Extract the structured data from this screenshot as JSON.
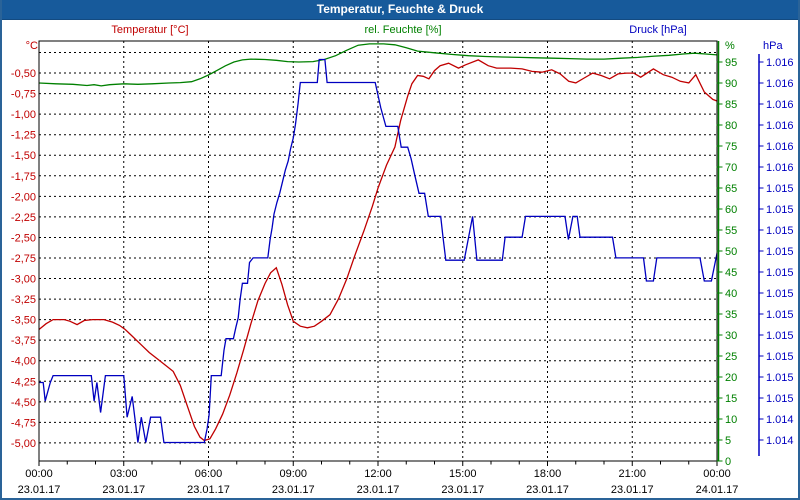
{
  "window": {
    "title": "Temperatur, Feuchte & Druck"
  },
  "series_labels": {
    "temperature": "Temperatur [°C]",
    "humidity": "rel. Feuchte [%]",
    "pressure": "Druck [hPa]"
  },
  "axis_units": {
    "temperature": "°C",
    "humidity": "%",
    "pressure": "hPa"
  },
  "colors": {
    "temperature": "#c00000",
    "humidity": "#008000",
    "pressure": "#0000c0",
    "grid": "#000000",
    "titlebar": "#175a9b",
    "window_border": "#2a6398"
  },
  "chart_data": {
    "type": "line",
    "title": "Temperatur, Feuchte & Druck",
    "x_axis": {
      "unit": "time",
      "range_hours": [
        0,
        24
      ],
      "major_tick_every_hours": 3,
      "minor_tick_every_hours": 1,
      "ticks": [
        {
          "h": 0,
          "time": "00:00",
          "date": "23.01.17"
        },
        {
          "h": 3,
          "time": "03:00",
          "date": "23.01.17"
        },
        {
          "h": 6,
          "time": "06:00",
          "date": "23.01.17"
        },
        {
          "h": 9,
          "time": "09:00",
          "date": "23.01.17"
        },
        {
          "h": 12,
          "time": "12:00",
          "date": "23.01.17"
        },
        {
          "h": 15,
          "time": "15:00",
          "date": "23.01.17"
        },
        {
          "h": 18,
          "time": "18:00",
          "date": "23.01.17"
        },
        {
          "h": 21,
          "time": "21:00",
          "date": "23.01.17"
        },
        {
          "h": 24,
          "time": "00:00",
          "date": "24.01.17"
        }
      ]
    },
    "y_axes": {
      "temperature": {
        "unit": "°C",
        "side": "left",
        "range": [
          -5.22,
          -0.11
        ],
        "gridline_values": [
          -0.25,
          -0.5,
          -0.75,
          -1.0,
          -1.25,
          -1.5,
          -1.75,
          -2.0,
          -2.25,
          -2.5,
          -2.75,
          -3.0,
          -3.25,
          -3.5,
          -3.75,
          -4.0,
          -4.25,
          -4.5,
          -4.75,
          -5.0
        ],
        "tick_values": [
          -0.5,
          -0.75,
          -1.0,
          -1.25,
          -1.5,
          -1.75,
          -2.0,
          -2.25,
          -2.5,
          -2.75,
          -3.0,
          -3.25,
          -3.5,
          -3.75,
          -4.0,
          -4.25,
          -4.5,
          -4.75,
          -5.0
        ],
        "tick_labels": [
          "-0,50",
          "-0,75",
          "-1,00",
          "-1,25",
          "-1,50",
          "-1,75",
          "-2,00",
          "-2,25",
          "-2,50",
          "-2,75",
          "-3,00",
          "-3,25",
          "-3,50",
          "-3,75",
          "-4,00",
          "-4,25",
          "-4,50",
          "-4,75",
          "-5,00"
        ]
      },
      "humidity": {
        "unit": "%",
        "side": "right-inner",
        "range": [
          0,
          100
        ],
        "tick_values": [
          95,
          90,
          85,
          80,
          75,
          70,
          65,
          60,
          55,
          50,
          45,
          40,
          35,
          30,
          25,
          20,
          15,
          10,
          5,
          0
        ],
        "tick_labels": [
          "95",
          "90",
          "85",
          "80",
          "75",
          "70",
          "65",
          "60",
          "55",
          "50",
          "45",
          "40",
          "35",
          "30",
          "25",
          "20",
          "15",
          "10",
          "5",
          "0"
        ]
      },
      "pressure": {
        "unit": "hPa",
        "side": "right-outer",
        "range": [
          1014.27,
          1016.09
        ],
        "tick_positions_on_humidity_scale": [
          95,
          90,
          85,
          80,
          75,
          70,
          65,
          60,
          55,
          50,
          45,
          40,
          35,
          30,
          25,
          20,
          15,
          10,
          5
        ],
        "tick_labels": [
          "1.016",
          "1.016",
          "1.016",
          "1.016",
          "1.016",
          "1.016",
          "1.015",
          "1.015",
          "1.015",
          "1.015",
          "1.015",
          "1.015",
          "1.015",
          "1.015",
          "1.015",
          "1.015",
          "1.015",
          "1.014",
          "1.014"
        ]
      }
    },
    "series": [
      {
        "name": "Temperatur",
        "unit": "°C",
        "axis": "temperature",
        "color": "#c00000",
        "points": [
          [
            0,
            -3.62
          ],
          [
            0.25,
            -3.55
          ],
          [
            0.5,
            -3.5
          ],
          [
            0.9,
            -3.5
          ],
          [
            1.1,
            -3.52
          ],
          [
            1.35,
            -3.56
          ],
          [
            1.6,
            -3.51
          ],
          [
            1.9,
            -3.5
          ],
          [
            2.3,
            -3.5
          ],
          [
            2.6,
            -3.53
          ],
          [
            2.85,
            -3.57
          ],
          [
            3.05,
            -3.62
          ],
          [
            3.3,
            -3.7
          ],
          [
            3.6,
            -3.8
          ],
          [
            3.9,
            -3.9
          ],
          [
            4.2,
            -3.98
          ],
          [
            4.5,
            -4.06
          ],
          [
            4.75,
            -4.13
          ],
          [
            5.0,
            -4.3
          ],
          [
            5.25,
            -4.55
          ],
          [
            5.5,
            -4.8
          ],
          [
            5.7,
            -4.93
          ],
          [
            5.85,
            -4.97
          ],
          [
            6.05,
            -4.95
          ],
          [
            6.25,
            -4.83
          ],
          [
            6.5,
            -4.65
          ],
          [
            6.75,
            -4.42
          ],
          [
            7.0,
            -4.15
          ],
          [
            7.25,
            -3.86
          ],
          [
            7.5,
            -3.55
          ],
          [
            7.75,
            -3.27
          ],
          [
            8.0,
            -3.06
          ],
          [
            8.2,
            -2.93
          ],
          [
            8.4,
            -2.87
          ],
          [
            8.6,
            -3.07
          ],
          [
            8.8,
            -3.32
          ],
          [
            9.0,
            -3.52
          ],
          [
            9.25,
            -3.58
          ],
          [
            9.5,
            -3.6
          ],
          [
            9.75,
            -3.58
          ],
          [
            10.0,
            -3.52
          ],
          [
            10.3,
            -3.44
          ],
          [
            10.6,
            -3.25
          ],
          [
            10.9,
            -3.0
          ],
          [
            11.2,
            -2.7
          ],
          [
            11.5,
            -2.42
          ],
          [
            11.8,
            -2.12
          ],
          [
            12.0,
            -1.9
          ],
          [
            12.3,
            -1.62
          ],
          [
            12.6,
            -1.4
          ],
          [
            12.8,
            -1.08
          ],
          [
            13.05,
            -0.78
          ],
          [
            13.2,
            -0.63
          ],
          [
            13.4,
            -0.53
          ],
          [
            13.6,
            -0.54
          ],
          [
            13.8,
            -0.57
          ],
          [
            14.0,
            -0.47
          ],
          [
            14.2,
            -0.41
          ],
          [
            14.5,
            -0.38
          ],
          [
            14.85,
            -0.44
          ],
          [
            15.1,
            -0.4
          ],
          [
            15.55,
            -0.34
          ],
          [
            15.9,
            -0.41
          ],
          [
            16.2,
            -0.44
          ],
          [
            16.7,
            -0.44
          ],
          [
            17.1,
            -0.45
          ],
          [
            17.45,
            -0.48
          ],
          [
            17.8,
            -0.49
          ],
          [
            18.15,
            -0.46
          ],
          [
            18.45,
            -0.51
          ],
          [
            18.75,
            -0.6
          ],
          [
            19.0,
            -0.62
          ],
          [
            19.3,
            -0.56
          ],
          [
            19.6,
            -0.5
          ],
          [
            19.9,
            -0.53
          ],
          [
            20.2,
            -0.57
          ],
          [
            20.5,
            -0.51
          ],
          [
            20.8,
            -0.5
          ],
          [
            21.05,
            -0.5
          ],
          [
            21.3,
            -0.55
          ],
          [
            21.75,
            -0.45
          ],
          [
            22.1,
            -0.52
          ],
          [
            22.4,
            -0.55
          ],
          [
            22.7,
            -0.6
          ],
          [
            23.0,
            -0.62
          ],
          [
            23.25,
            -0.52
          ],
          [
            23.55,
            -0.73
          ],
          [
            23.85,
            -0.82
          ],
          [
            24,
            -0.84
          ]
        ]
      },
      {
        "name": "rel. Feuchte",
        "unit": "%",
        "axis": "humidity",
        "color": "#008000",
        "points": [
          [
            0,
            90
          ],
          [
            0.6,
            89.8
          ],
          [
            1.2,
            89.7
          ],
          [
            1.7,
            89.4
          ],
          [
            1.95,
            89.6
          ],
          [
            2.2,
            89.3
          ],
          [
            2.5,
            89.6
          ],
          [
            3.0,
            89.8
          ],
          [
            3.5,
            89.7
          ],
          [
            4.0,
            89.8
          ],
          [
            4.6,
            90
          ],
          [
            5.0,
            90.1
          ],
          [
            5.4,
            90.3
          ],
          [
            5.7,
            91.0
          ],
          [
            6.0,
            91.9
          ],
          [
            6.3,
            93.0
          ],
          [
            6.6,
            94.1
          ],
          [
            6.9,
            95.0
          ],
          [
            7.2,
            95.5
          ],
          [
            7.5,
            95.7
          ],
          [
            8.0,
            95.6
          ],
          [
            8.4,
            95.4
          ],
          [
            8.8,
            95.1
          ],
          [
            9.2,
            95.0
          ],
          [
            9.7,
            95.1
          ],
          [
            10.1,
            95.6
          ],
          [
            10.5,
            96.5
          ],
          [
            10.9,
            97.8
          ],
          [
            11.3,
            99.0
          ],
          [
            11.7,
            99.3
          ],
          [
            12.2,
            99.3
          ],
          [
            12.6,
            99.1
          ],
          [
            13.0,
            98.4
          ],
          [
            13.4,
            97.6
          ],
          [
            14.0,
            97.2
          ],
          [
            14.6,
            96.8
          ],
          [
            15.2,
            96.5
          ],
          [
            15.8,
            96.3
          ],
          [
            16.4,
            96.2
          ],
          [
            17.0,
            96.1
          ],
          [
            17.6,
            96.0
          ],
          [
            18.2,
            95.9
          ],
          [
            18.8,
            95.8
          ],
          [
            19.4,
            95.7
          ],
          [
            20.0,
            95.7
          ],
          [
            20.6,
            95.9
          ],
          [
            21.2,
            96.1
          ],
          [
            21.8,
            96.4
          ],
          [
            22.3,
            96.6
          ],
          [
            22.8,
            96.9
          ],
          [
            23.2,
            97.1
          ],
          [
            23.6,
            96.9
          ],
          [
            24,
            96.7
          ]
        ]
      },
      {
        "name": "Druck",
        "unit": "hPa",
        "axis": "pressure",
        "color": "#0000c0",
        "points": [
          [
            0,
            1014.61
          ],
          [
            0.15,
            1014.61
          ],
          [
            0.22,
            1014.53
          ],
          [
            0.4,
            1014.61
          ],
          [
            0.5,
            1014.64
          ],
          [
            1.85,
            1014.64
          ],
          [
            1.95,
            1014.53
          ],
          [
            2.05,
            1014.61
          ],
          [
            2.18,
            1014.48
          ],
          [
            2.35,
            1014.64
          ],
          [
            3.0,
            1014.64
          ],
          [
            3.12,
            1014.46
          ],
          [
            3.3,
            1014.55
          ],
          [
            3.5,
            1014.35
          ],
          [
            3.62,
            1014.46
          ],
          [
            3.78,
            1014.35
          ],
          [
            3.95,
            1014.46
          ],
          [
            4.3,
            1014.46
          ],
          [
            4.42,
            1014.35
          ],
          [
            5.85,
            1014.35
          ],
          [
            5.95,
            1014.41
          ],
          [
            6.02,
            1014.47
          ],
          [
            6.1,
            1014.64
          ],
          [
            6.45,
            1014.64
          ],
          [
            6.55,
            1014.75
          ],
          [
            6.62,
            1014.8
          ],
          [
            6.88,
            1014.8
          ],
          [
            6.97,
            1014.85
          ],
          [
            7.05,
            1014.89
          ],
          [
            7.12,
            1014.97
          ],
          [
            7.2,
            1015.04
          ],
          [
            7.38,
            1015.04
          ],
          [
            7.45,
            1015.13
          ],
          [
            7.58,
            1015.15
          ],
          [
            8.1,
            1015.15
          ],
          [
            8.18,
            1015.23
          ],
          [
            8.25,
            1015.28
          ],
          [
            8.32,
            1015.34
          ],
          [
            8.42,
            1015.39
          ],
          [
            8.52,
            1015.43
          ],
          [
            8.62,
            1015.48
          ],
          [
            8.72,
            1015.53
          ],
          [
            8.82,
            1015.57
          ],
          [
            8.9,
            1015.62
          ],
          [
            9.0,
            1015.67
          ],
          [
            9.08,
            1015.73
          ],
          [
            9.17,
            1015.82
          ],
          [
            9.25,
            1015.91
          ],
          [
            9.85,
            1015.91
          ],
          [
            9.92,
            1016.01
          ],
          [
            10.12,
            1016.01
          ],
          [
            10.2,
            1015.91
          ],
          [
            11.9,
            1015.91
          ],
          [
            12.1,
            1015.8
          ],
          [
            12.28,
            1015.72
          ],
          [
            12.7,
            1015.72
          ],
          [
            12.82,
            1015.63
          ],
          [
            13.05,
            1015.63
          ],
          [
            13.17,
            1015.58
          ],
          [
            13.3,
            1015.51
          ],
          [
            13.45,
            1015.43
          ],
          [
            13.65,
            1015.43
          ],
          [
            13.78,
            1015.33
          ],
          [
            14.22,
            1015.33
          ],
          [
            14.3,
            1015.24
          ],
          [
            14.4,
            1015.14
          ],
          [
            15.05,
            1015.14
          ],
          [
            15.35,
            1015.33
          ],
          [
            15.5,
            1015.14
          ],
          [
            16.4,
            1015.14
          ],
          [
            16.5,
            1015.24
          ],
          [
            17.1,
            1015.24
          ],
          [
            17.22,
            1015.33
          ],
          [
            18.62,
            1015.33
          ],
          [
            18.74,
            1015.23
          ],
          [
            18.9,
            1015.33
          ],
          [
            19.05,
            1015.33
          ],
          [
            19.15,
            1015.24
          ],
          [
            20.3,
            1015.24
          ],
          [
            20.42,
            1015.15
          ],
          [
            21.4,
            1015.15
          ],
          [
            21.5,
            1015.05
          ],
          [
            21.75,
            1015.05
          ],
          [
            21.87,
            1015.15
          ],
          [
            23.4,
            1015.15
          ],
          [
            23.55,
            1015.05
          ],
          [
            23.8,
            1015.05
          ],
          [
            24,
            1015.17
          ]
        ]
      }
    ],
    "layout": {
      "grid": "dashed",
      "legend_position": "top-row-colored-labels"
    }
  }
}
